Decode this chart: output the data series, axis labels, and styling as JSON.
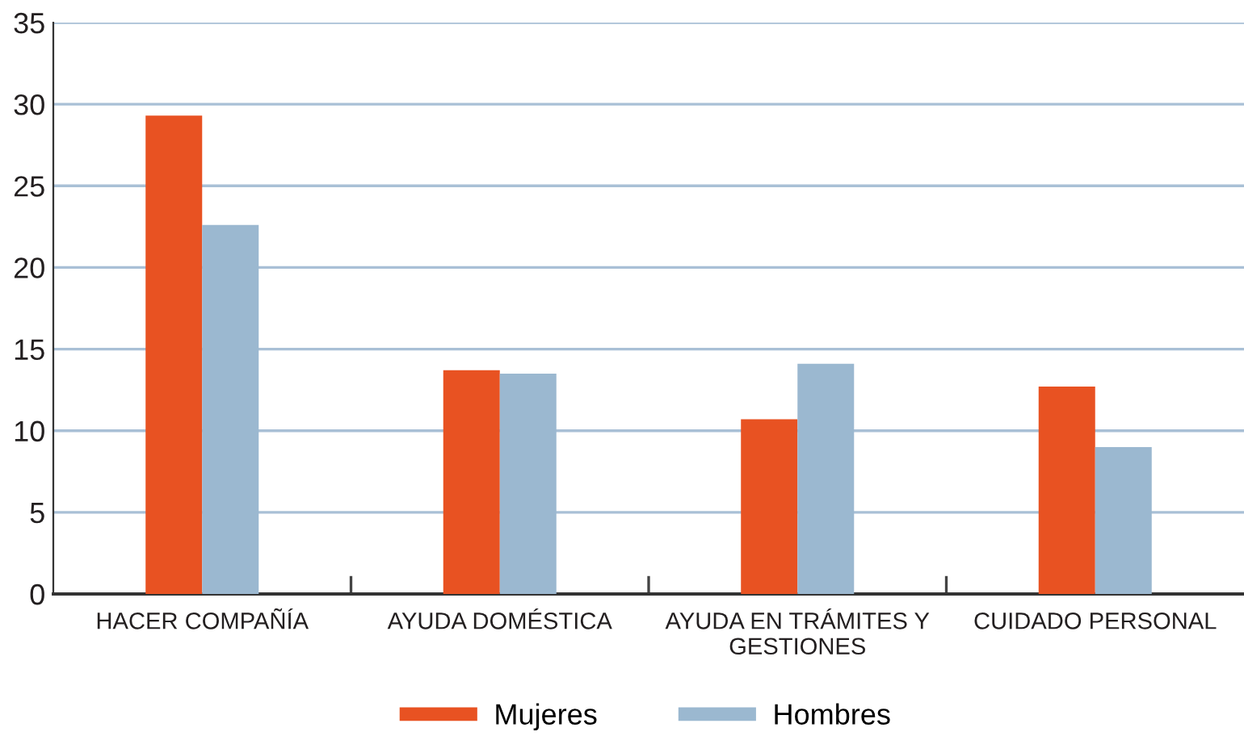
{
  "chart_data": {
    "type": "bar",
    "categories": [
      "HACER COMPAÑÍA",
      "AYUDA DOMÉSTICA",
      "AYUDA EN TRÁMITES Y\nGESTIONES",
      "CUIDADO PERSONAL"
    ],
    "series": [
      {
        "name": "Mujeres",
        "color": "#e85222",
        "values": [
          29.3,
          13.7,
          10.7,
          12.7
        ]
      },
      {
        "name": "Hombres",
        "color": "#9bb8d0",
        "values": [
          22.6,
          13.5,
          14.1,
          9.0
        ]
      }
    ],
    "ylim": [
      0,
      35
    ],
    "yticks": [
      0,
      5,
      10,
      15,
      20,
      25,
      30,
      35
    ],
    "grid": "y",
    "legend": "bottom"
  }
}
